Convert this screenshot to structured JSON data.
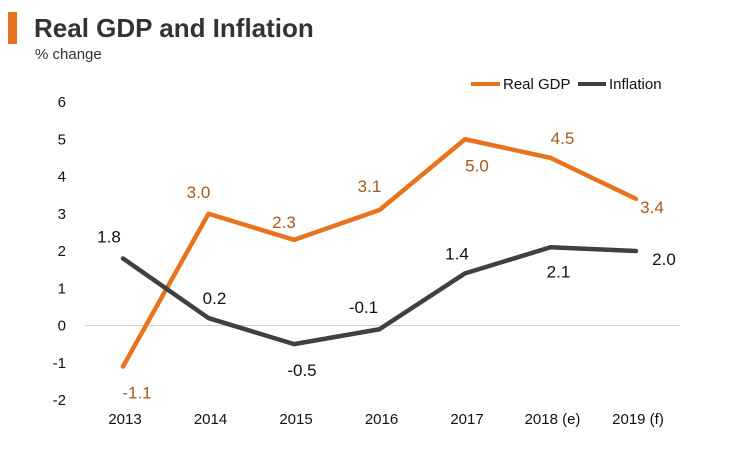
{
  "chart_data": {
    "type": "line",
    "title": "Real GDP and Inflation",
    "subtitle": "% change",
    "categories": [
      "2013",
      "2014",
      "2015",
      "2016",
      "2017",
      "2018 (e)",
      "2019 (f)"
    ],
    "ylim": [
      -2,
      6
    ],
    "yticks": [
      6,
      5,
      4,
      3,
      2,
      1,
      0,
      -1,
      -2
    ],
    "legend_position": "top-right",
    "series": [
      {
        "name": "Real GDP",
        "color": "#e8731e",
        "label_color": "#a8581a",
        "values": [
          -1.1,
          3.0,
          2.3,
          3.1,
          5.0,
          4.5,
          3.4
        ],
        "labels": [
          "-1.1",
          "3.0",
          "2.3",
          "3.1",
          "5.0",
          "4.5",
          "3.4"
        ]
      },
      {
        "name": "Inflation",
        "color": "#404040",
        "label_color": "#111111",
        "values": [
          1.8,
          0.2,
          -0.5,
          -0.1,
          1.4,
          2.1,
          2.0
        ],
        "labels": [
          "1.8",
          "0.2",
          "-0.5",
          "-0.1",
          "1.4",
          "2.1",
          "2.0"
        ]
      }
    ]
  }
}
